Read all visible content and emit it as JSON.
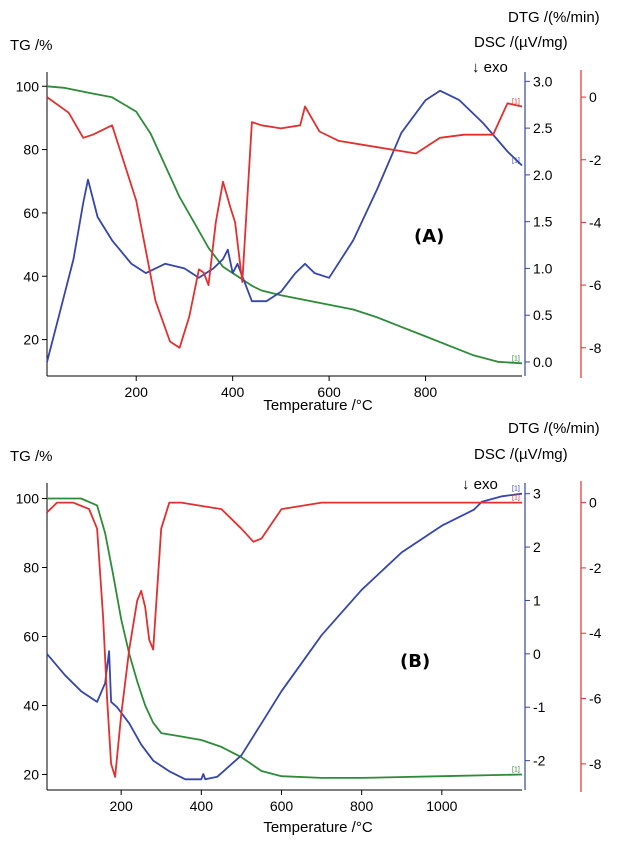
{
  "chart_data": [
    {
      "type": "line",
      "panel_label": "(A)",
      "xlabel": "Temperature /°C",
      "xlim": [
        15,
        1000
      ],
      "xticks": [
        200,
        400,
        600,
        800
      ],
      "axes": {
        "tg": {
          "label": "TG /%",
          "ylim": [
            8.5,
            104.5
          ],
          "ticks": [
            20,
            40,
            60,
            80,
            100
          ],
          "color": "#000000"
        },
        "dsc": {
          "label": "DSC /(µV/mg)",
          "ylim": [
            -0.15,
            3.1
          ],
          "ticks": [
            "0.0",
            "0.5",
            "1.0",
            "1.5",
            "2.0",
            "2.5",
            "3.0"
          ],
          "color": "#3446a8"
        },
        "dtg": {
          "label": "DTG /(%/min)",
          "ylim": [
            -8.9,
            0.8
          ],
          "ticks": [
            -8,
            -6,
            -4,
            -2,
            0
          ],
          "color": "#e03030"
        }
      },
      "exo_label": "↓ exo",
      "series": [
        {
          "axis": "tg",
          "color": "#2e8b3a",
          "end_marker": "[1]",
          "x": [
            15,
            50,
            100,
            150,
            200,
            230,
            260,
            290,
            320,
            350,
            380,
            400,
            420,
            440,
            460,
            500,
            550,
            600,
            650,
            700,
            750,
            800,
            850,
            900,
            950,
            1000
          ],
          "y": [
            100,
            99.5,
            98,
            96.5,
            92,
            85,
            75,
            65,
            57,
            49,
            43,
            41,
            39,
            37,
            35.5,
            34,
            32.5,
            31,
            29.5,
            27,
            24,
            21,
            18,
            15,
            13,
            12.5
          ]
        },
        {
          "axis": "dsc",
          "color": "#3446a8",
          "end_marker": "[1]",
          "x": [
            15,
            40,
            70,
            90,
            100,
            120,
            150,
            190,
            220,
            260,
            300,
            330,
            360,
            380,
            390,
            400,
            410,
            440,
            470,
            500,
            530,
            550,
            570,
            600,
            650,
            700,
            750,
            800,
            830,
            870,
            920,
            970,
            1000
          ],
          "y": [
            0.0,
            0.5,
            1.1,
            1.7,
            1.95,
            1.55,
            1.3,
            1.05,
            0.95,
            1.05,
            1.0,
            0.9,
            1.0,
            1.1,
            1.2,
            0.95,
            1.05,
            0.65,
            0.65,
            0.75,
            0.95,
            1.05,
            0.95,
            0.9,
            1.3,
            1.85,
            2.45,
            2.8,
            2.9,
            2.8,
            2.55,
            2.25,
            2.1
          ]
        },
        {
          "axis": "dtg",
          "color": "#e03030",
          "end_marker": "[1]",
          "x": [
            15,
            60,
            90,
            110,
            150,
            200,
            240,
            270,
            290,
            310,
            330,
            340,
            350,
            365,
            380,
            395,
            405,
            420,
            440,
            460,
            500,
            540,
            550,
            580,
            620,
            700,
            780,
            830,
            880,
            940,
            970,
            1000
          ],
          "y": [
            0,
            -0.5,
            -1.3,
            -1.2,
            -0.9,
            -3.3,
            -6.5,
            -7.8,
            -8.0,
            -7.0,
            -5.5,
            -5.6,
            -6.0,
            -4.0,
            -2.7,
            -3.5,
            -4.0,
            -5.9,
            -0.8,
            -0.9,
            -1.0,
            -0.9,
            -0.3,
            -1.1,
            -1.4,
            -1.6,
            -1.8,
            -1.3,
            -1.2,
            -1.2,
            -0.2,
            -0.3
          ]
        }
      ]
    },
    {
      "type": "line",
      "panel_label": "(B)",
      "xlabel": "Temperature /°C",
      "xlim": [
        15,
        1200
      ],
      "xticks": [
        200,
        400,
        600,
        800,
        1000
      ],
      "axes": {
        "tg": {
          "label": "TG /%",
          "ylim": [
            15.5,
            104.5
          ],
          "ticks": [
            20,
            40,
            60,
            80,
            100
          ],
          "color": "#000000"
        },
        "dsc": {
          "label": "DSC /(µV/mg)",
          "ylim": [
            -2.55,
            3.2
          ],
          "ticks": [
            -2,
            -1,
            0,
            1,
            2,
            3
          ],
          "color": "#3446a8"
        },
        "dtg": {
          "label": "DTG /(%/min)",
          "ylim": [
            -8.8,
            0.6
          ],
          "ticks": [
            -8,
            -6,
            -4,
            -2,
            0
          ],
          "color": "#e03030"
        }
      },
      "exo_label": "↓ exo",
      "series": [
        {
          "axis": "tg",
          "color": "#2e8b3a",
          "end_marker": "[1]",
          "x": [
            15,
            100,
            140,
            160,
            180,
            200,
            220,
            240,
            260,
            280,
            300,
            350,
            400,
            450,
            500,
            550,
            600,
            700,
            800,
            1000,
            1200
          ],
          "y": [
            100,
            100,
            98,
            90,
            78,
            65,
            55,
            47,
            40,
            35,
            32,
            31,
            30,
            28,
            25,
            21,
            19.5,
            19,
            19,
            19.5,
            20
          ]
        },
        {
          "axis": "dsc",
          "color": "#3446a8",
          "end_marker": "[1]",
          "x": [
            15,
            60,
            100,
            140,
            160,
            170,
            175,
            190,
            220,
            250,
            280,
            320,
            360,
            400,
            405,
            410,
            440,
            500,
            550,
            600,
            700,
            800,
            900,
            1000,
            1080,
            1100,
            1150,
            1200
          ],
          "y": [
            0,
            -0.4,
            -0.7,
            -0.9,
            -0.55,
            0.05,
            -0.9,
            -1.0,
            -1.3,
            -1.7,
            -2.0,
            -2.2,
            -2.35,
            -2.35,
            -2.25,
            -2.35,
            -2.3,
            -1.9,
            -1.3,
            -0.7,
            0.35,
            1.2,
            1.9,
            2.4,
            2.7,
            2.85,
            2.95,
            3.0
          ]
        },
        {
          "axis": "dtg",
          "color": "#e03030",
          "end_marker": "[1]",
          "x": [
            15,
            40,
            80,
            120,
            140,
            155,
            165,
            175,
            185,
            200,
            220,
            240,
            250,
            260,
            270,
            280,
            300,
            320,
            350,
            400,
            450,
            500,
            530,
            550,
            600,
            700,
            800,
            900,
            1000,
            1100,
            1200
          ],
          "y": [
            -0.3,
            0,
            0,
            -0.2,
            -0.8,
            -3.5,
            -6.0,
            -8.0,
            -8.4,
            -6.5,
            -4.5,
            -3.0,
            -2.7,
            -3.2,
            -4.2,
            -4.5,
            -0.8,
            0,
            0,
            -0.1,
            -0.2,
            -0.8,
            -1.2,
            -1.1,
            -0.2,
            0,
            0,
            0,
            0,
            0,
            0
          ]
        }
      ]
    }
  ]
}
